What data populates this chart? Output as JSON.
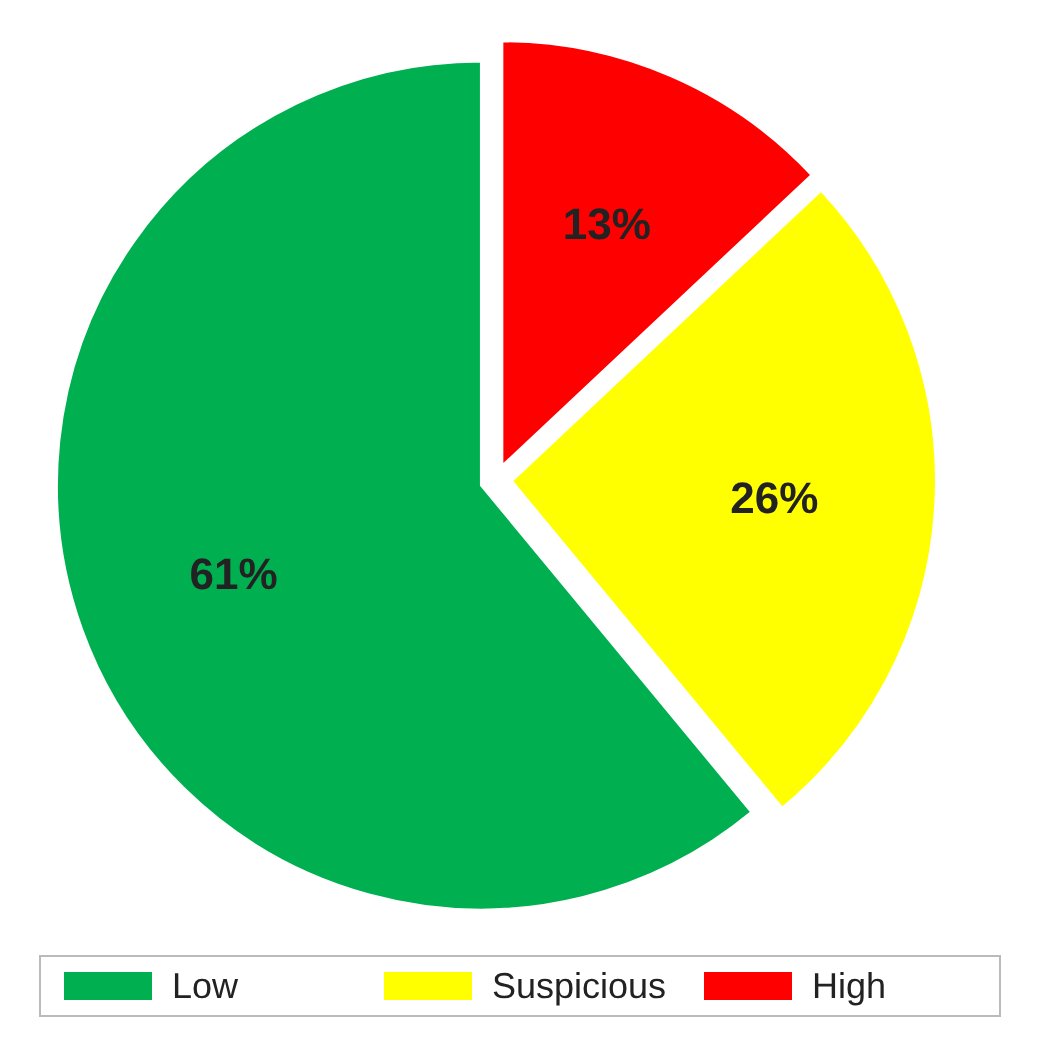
{
  "chart_data": {
    "type": "pie",
    "categories": [
      "Low",
      "Suspicious",
      "High"
    ],
    "values": [
      61,
      26,
      13
    ],
    "colors": [
      "#00b050",
      "#ffff00",
      "#ff0000"
    ],
    "value_labels": [
      "61%",
      "26%",
      "13%"
    ],
    "legend": "bottom"
  }
}
